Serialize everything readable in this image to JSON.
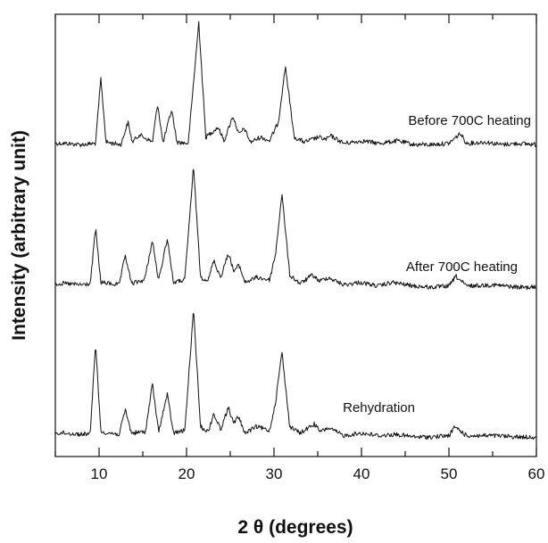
{
  "chart_data": {
    "type": "line",
    "xlabel": "2 θ (degrees)",
    "ylabel": "Intensity (arbitrary unit)",
    "xlim": [
      5,
      60
    ],
    "x_ticks": [
      "10",
      "20",
      "30",
      "40",
      "50",
      "60"
    ],
    "y_ticks_labeled": false,
    "grid": false,
    "legend": "none",
    "line_color": "#111111",
    "series": [
      {
        "name": "Before 700C heating",
        "x": [
          6,
          8,
          9.6,
          10.2,
          10.8,
          12.5,
          13.3,
          13.8,
          14.6,
          16.1,
          16.7,
          17.3,
          18.3,
          18.9,
          20.2,
          21.4,
          22.2,
          23.6,
          24.3,
          25.3,
          26.0,
          26.6,
          27.3,
          28.5,
          29.5,
          30.5,
          31.3,
          32.3,
          33.5,
          35.1,
          35.9,
          36.5,
          38.0,
          40.1,
          42.0,
          44.1,
          46.0,
          48.0,
          50.0,
          51.3,
          52.0,
          54.2,
          56.0,
          58.0,
          60.0
        ],
        "y": [
          3,
          2,
          3,
          55,
          4,
          2,
          20,
          4,
          10,
          4,
          35,
          3,
          30,
          4,
          3,
          100,
          8,
          16,
          5,
          25,
          10,
          15,
          4,
          8,
          5,
          20,
          65,
          8,
          4,
          8,
          6,
          9,
          3,
          5,
          3,
          5,
          2,
          2,
          3,
          11,
          3,
          4,
          2,
          3,
          2
        ]
      },
      {
        "name": "After 700C heating",
        "x": [
          6,
          8,
          9.0,
          9.6,
          10.2,
          12.3,
          13.0,
          13.7,
          15.2,
          16.1,
          16.8,
          17.8,
          18.5,
          19.8,
          20.8,
          21.6,
          22.5,
          23.1,
          23.9,
          24.8,
          25.4,
          26.0,
          26.7,
          28.0,
          29.5,
          30.2,
          30.9,
          31.8,
          33.0,
          34.4,
          35.2,
          36.2,
          38.0,
          39.8,
          42.0,
          43.5,
          46.0,
          48.0,
          50.0,
          50.8,
          52.0,
          55.0,
          58.0,
          60.0
        ],
        "y": [
          5,
          4,
          5,
          50,
          6,
          4,
          28,
          5,
          8,
          40,
          7,
          42,
          6,
          8,
          100,
          10,
          8,
          24,
          10,
          30,
          15,
          20,
          6,
          10,
          8,
          30,
          78,
          12,
          5,
          12,
          7,
          10,
          4,
          6,
          3,
          6,
          3,
          2,
          3,
          11,
          3,
          4,
          2,
          2
        ]
      },
      {
        "name": "Rehydration",
        "x": [
          6,
          8,
          9.0,
          9.6,
          10.2,
          12.3,
          13.0,
          13.7,
          15.3,
          16.1,
          16.8,
          17.8,
          18.5,
          19.8,
          20.8,
          21.6,
          22.5,
          23.1,
          23.9,
          24.8,
          25.4,
          25.9,
          26.7,
          28.0,
          29.5,
          30.2,
          30.9,
          31.8,
          33.0,
          34.6,
          35.3,
          36.2,
          38.0,
          40.0,
          42.0,
          44.0,
          46.0,
          48.0,
          50.0,
          50.7,
          52.0,
          55.0,
          58.0,
          60.0
        ],
        "y": [
          5,
          4,
          5,
          75,
          6,
          4,
          23,
          5,
          6,
          43,
          6,
          35,
          5,
          7,
          100,
          10,
          6,
          20,
          8,
          25,
          12,
          18,
          5,
          10,
          7,
          30,
          68,
          10,
          5,
          12,
          6,
          9,
          3,
          5,
          3,
          4,
          2,
          2,
          3,
          10,
          3,
          3,
          2,
          2
        ]
      }
    ]
  }
}
